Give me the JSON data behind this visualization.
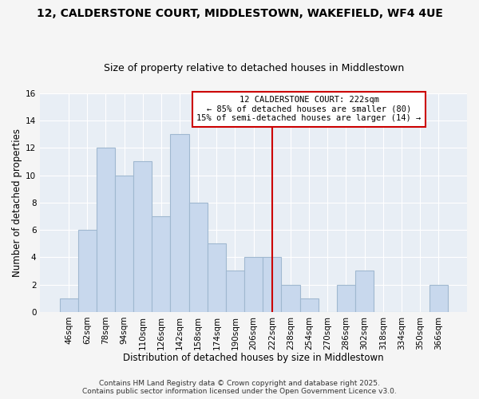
{
  "title": "12, CALDERSTONE COURT, MIDDLESTOWN, WAKEFIELD, WF4 4UE",
  "subtitle": "Size of property relative to detached houses in Middlestown",
  "xlabel": "Distribution of detached houses by size in Middlestown",
  "ylabel": "Number of detached properties",
  "bin_labels": [
    "46sqm",
    "62sqm",
    "78sqm",
    "94sqm",
    "110sqm",
    "126sqm",
    "142sqm",
    "158sqm",
    "174sqm",
    "190sqm",
    "206sqm",
    "222sqm",
    "238sqm",
    "254sqm",
    "270sqm",
    "286sqm",
    "302sqm",
    "318sqm",
    "334sqm",
    "350sqm",
    "366sqm"
  ],
  "bar_heights": [
    1,
    6,
    12,
    10,
    11,
    7,
    13,
    8,
    5,
    3,
    4,
    4,
    2,
    1,
    0,
    2,
    3,
    0,
    0,
    0,
    2
  ],
  "bar_color": "#c8d8ed",
  "bar_edge_color": "#a0b8d0",
  "bar_width": 1.0,
  "vline_x_index": 11,
  "vline_color": "#cc0000",
  "ylim": [
    0,
    16
  ],
  "yticks": [
    0,
    2,
    4,
    6,
    8,
    10,
    12,
    14,
    16
  ],
  "annotation_title": "12 CALDERSTONE COURT: 222sqm",
  "annotation_line1": "← 85% of detached houses are smaller (80)",
  "annotation_line2": "15% of semi-detached houses are larger (14) →",
  "annotation_box_color": "#ffffff",
  "annotation_box_edge": "#cc0000",
  "footnote1": "Contains HM Land Registry data © Crown copyright and database right 2025.",
  "footnote2": "Contains public sector information licensed under the Open Government Licence v3.0.",
  "plot_bg_color": "#e8eef5",
  "fig_bg_color": "#f5f5f5",
  "grid_color": "#ffffff",
  "title_fontsize": 10,
  "subtitle_fontsize": 9,
  "axis_label_fontsize": 8.5,
  "tick_fontsize": 7.5,
  "annotation_fontsize": 7.5,
  "footnote_fontsize": 6.5
}
